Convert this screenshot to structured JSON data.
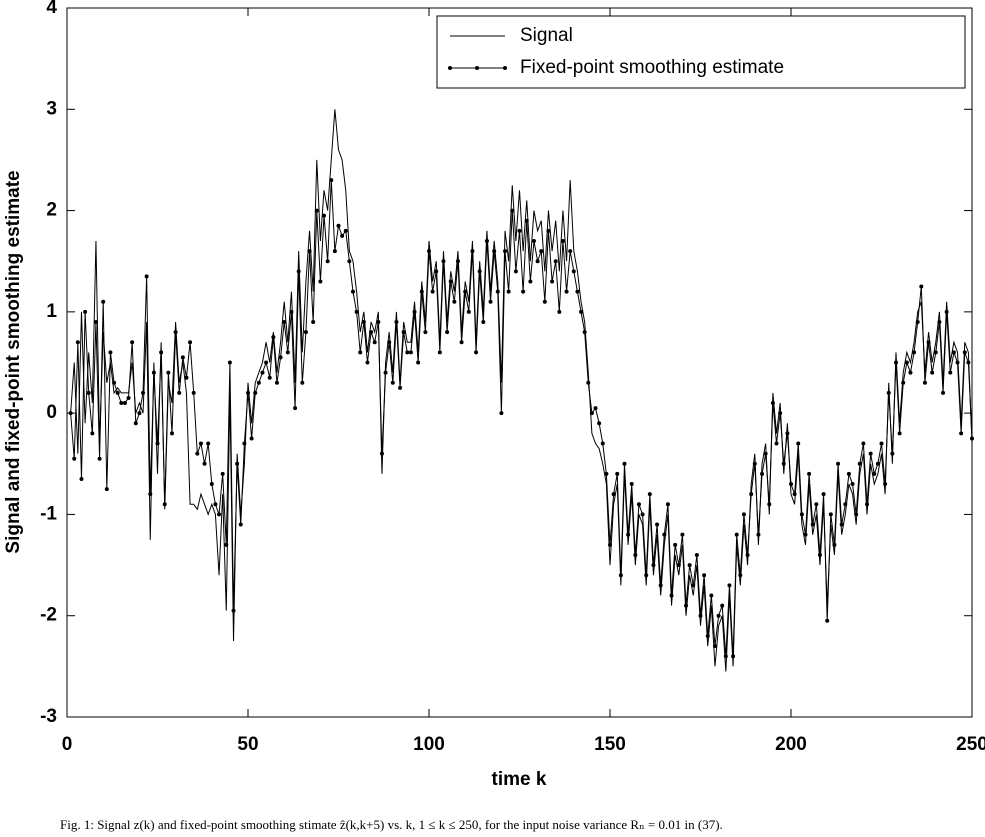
{
  "chart_data": {
    "type": "line",
    "xlabel": "time k",
    "ylabel": "Signal and fixed-point smoothing estimate",
    "caption": "Fig. 1: Signal z(k) and fixed-point smoothing stimate ẑ(k,k+5) vs. k, 1 ≤ k ≤ 250, for the input noise variance Rₙ = 0.01 in (37).",
    "legend": "upper right",
    "xlim": [
      0,
      250
    ],
    "xticks": [
      0,
      50,
      100,
      150,
      200,
      250
    ],
    "ylim": [
      -3,
      4
    ],
    "yticks": [
      -3,
      -2,
      -1,
      0,
      1,
      2,
      3,
      4
    ],
    "x": [
      1,
      2,
      3,
      4,
      5,
      6,
      7,
      8,
      9,
      10,
      11,
      12,
      13,
      14,
      15,
      16,
      17,
      18,
      19,
      20,
      21,
      22,
      23,
      24,
      25,
      26,
      27,
      28,
      29,
      30,
      31,
      32,
      33,
      34,
      35,
      36,
      37,
      38,
      39,
      40,
      41,
      42,
      43,
      44,
      45,
      46,
      47,
      48,
      49,
      50,
      51,
      52,
      53,
      54,
      55,
      56,
      57,
      58,
      59,
      60,
      61,
      62,
      63,
      64,
      65,
      66,
      67,
      68,
      69,
      70,
      71,
      72,
      73,
      74,
      75,
      76,
      77,
      78,
      79,
      80,
      81,
      82,
      83,
      84,
      85,
      86,
      87,
      88,
      89,
      90,
      91,
      92,
      93,
      94,
      95,
      96,
      97,
      98,
      99,
      100,
      101,
      102,
      103,
      104,
      105,
      106,
      107,
      108,
      109,
      110,
      111,
      112,
      113,
      114,
      115,
      116,
      117,
      118,
      119,
      120,
      121,
      122,
      123,
      124,
      125,
      126,
      127,
      128,
      129,
      130,
      131,
      132,
      133,
      134,
      135,
      136,
      137,
      138,
      139,
      140,
      141,
      142,
      143,
      144,
      145,
      146,
      147,
      148,
      149,
      150,
      151,
      152,
      153,
      154,
      155,
      156,
      157,
      158,
      159,
      160,
      161,
      162,
      163,
      164,
      165,
      166,
      167,
      168,
      169,
      170,
      171,
      172,
      173,
      174,
      175,
      176,
      177,
      178,
      179,
      180,
      181,
      182,
      183,
      184,
      185,
      186,
      187,
      188,
      189,
      190,
      191,
      192,
      193,
      194,
      195,
      196,
      197,
      198,
      199,
      200,
      201,
      202,
      203,
      204,
      205,
      206,
      207,
      208,
      209,
      210,
      211,
      212,
      213,
      214,
      215,
      216,
      217,
      218,
      219,
      220,
      221,
      222,
      223,
      224,
      225,
      226,
      227,
      228,
      229,
      230,
      231,
      232,
      233,
      234,
      235,
      236,
      237,
      238,
      239,
      240,
      241,
      242,
      243,
      244,
      245,
      246,
      247,
      248,
      249,
      250
    ],
    "series": [
      {
        "name": "Signal",
        "color": "#000000",
        "marker": "none",
        "values": [
          0.0,
          0.5,
          -0.4,
          1.0,
          -0.1,
          0.6,
          0.1,
          1.7,
          -0.3,
          0.8,
          0.3,
          0.5,
          0.2,
          0.25,
          0.2,
          0.2,
          0.2,
          0.5,
          0.0,
          0.1,
          0.0,
          0.9,
          -1.25,
          0.5,
          -0.6,
          0.7,
          -0.95,
          0.3,
          0.1,
          0.9,
          0.3,
          0.5,
          0.2,
          -0.9,
          -0.9,
          -0.95,
          -0.8,
          -0.9,
          -1.0,
          -0.9,
          -1.0,
          -1.6,
          -0.8,
          -1.95,
          0.2,
          -2.25,
          -0.4,
          -1.0,
          -0.5,
          0.3,
          -0.1,
          0.3,
          0.4,
          0.5,
          0.7,
          0.5,
          0.8,
          0.4,
          0.7,
          1.1,
          0.7,
          1.2,
          0.3,
          1.6,
          0.6,
          1.3,
          1.8,
          1.2,
          2.5,
          1.7,
          2.2,
          2.0,
          2.5,
          3.0,
          2.6,
          2.5,
          2.2,
          1.6,
          1.5,
          1.2,
          0.8,
          1.0,
          0.6,
          0.9,
          0.8,
          1.0,
          -0.6,
          0.5,
          0.8,
          0.4,
          1.0,
          0.3,
          0.9,
          0.7,
          0.7,
          1.1,
          0.6,
          1.3,
          0.9,
          1.7,
          1.3,
          1.5,
          0.7,
          1.6,
          0.9,
          1.4,
          1.2,
          1.6,
          0.8,
          1.3,
          1.1,
          1.7,
          0.7,
          1.5,
          1.0,
          1.8,
          1.2,
          1.7,
          1.3,
          0.3,
          1.8,
          1.5,
          2.25,
          1.7,
          2.2,
          1.6,
          2.1,
          1.5,
          2.0,
          1.8,
          1.9,
          1.4,
          2.0,
          1.6,
          1.9,
          1.4,
          2.0,
          1.5,
          2.3,
          1.6,
          1.4,
          1.1,
          0.9,
          0.4,
          -0.2,
          -0.3,
          -0.35,
          -0.5,
          -0.7,
          -1.5,
          -0.9,
          -0.7,
          -1.7,
          -0.6,
          -1.3,
          -0.8,
          -1.5,
          -1.0,
          -1.1,
          -1.7,
          -0.9,
          -1.6,
          -1.2,
          -1.8,
          -1.3,
          -1.0,
          -1.9,
          -1.4,
          -1.6,
          -1.3,
          -2.0,
          -1.6,
          -1.8,
          -1.5,
          -2.1,
          -1.7,
          -2.3,
          -1.9,
          -2.5,
          -2.1,
          -2.0,
          -2.55,
          -1.8,
          -2.5,
          -1.3,
          -1.7,
          -1.1,
          -1.5,
          -0.7,
          -0.4,
          -1.3,
          -0.5,
          -0.3,
          -1.0,
          0.2,
          -0.2,
          0.1,
          -0.6,
          -0.1,
          -0.8,
          -0.9,
          -0.4,
          -1.1,
          -1.3,
          -0.7,
          -1.2,
          -1.0,
          -1.5,
          -0.9,
          -1.9,
          -1.1,
          -1.4,
          -0.6,
          -1.2,
          -1.0,
          -0.7,
          -0.8,
          -1.1,
          -0.6,
          -0.4,
          -1.0,
          -0.5,
          -0.7,
          -0.6,
          -0.4,
          -0.8,
          0.3,
          -0.5,
          0.6,
          -0.1,
          0.4,
          0.6,
          0.5,
          0.7,
          1.0,
          1.1,
          0.4,
          0.8,
          0.5,
          0.7,
          1.0,
          0.3,
          1.1,
          0.5,
          0.7,
          0.6,
          -0.1,
          0.7,
          0.6,
          -0.3
        ]
      },
      {
        "name": "Fixed-point smoothing estimate",
        "color": "#000000",
        "marker": "o",
        "values": [
          0.0,
          -0.45,
          0.7,
          -0.65,
          1.0,
          0.2,
          -0.2,
          0.9,
          -0.45,
          1.1,
          -0.75,
          0.6,
          0.3,
          0.2,
          0.1,
          0.1,
          0.15,
          0.7,
          -0.1,
          0.0,
          0.2,
          1.35,
          -0.8,
          0.4,
          -0.3,
          0.6,
          -0.9,
          0.4,
          -0.2,
          0.8,
          0.2,
          0.55,
          0.35,
          0.7,
          0.2,
          -0.4,
          -0.3,
          -0.5,
          -0.3,
          -0.7,
          -0.9,
          -1.0,
          -0.6,
          -1.3,
          0.5,
          -1.95,
          -0.5,
          -1.1,
          -0.3,
          0.2,
          -0.25,
          0.2,
          0.3,
          0.4,
          0.5,
          0.35,
          0.75,
          0.3,
          0.55,
          0.9,
          0.6,
          1.0,
          0.05,
          1.4,
          0.3,
          0.8,
          1.6,
          0.9,
          2.0,
          1.3,
          1.95,
          1.5,
          2.3,
          1.6,
          1.85,
          1.75,
          1.8,
          1.5,
          1.2,
          1.0,
          0.6,
          0.9,
          0.5,
          0.8,
          0.7,
          0.9,
          -0.4,
          0.4,
          0.7,
          0.3,
          0.9,
          0.25,
          0.8,
          0.6,
          0.6,
          1.0,
          0.5,
          1.2,
          0.8,
          1.6,
          1.2,
          1.4,
          0.6,
          1.5,
          0.8,
          1.3,
          1.1,
          1.5,
          0.7,
          1.2,
          1.0,
          1.6,
          0.6,
          1.4,
          0.9,
          1.7,
          1.1,
          1.6,
          1.2,
          0.0,
          1.6,
          1.2,
          2.0,
          1.4,
          1.8,
          1.2,
          1.9,
          1.3,
          1.7,
          1.5,
          1.6,
          1.1,
          1.8,
          1.3,
          1.5,
          1.0,
          1.7,
          1.2,
          1.6,
          1.4,
          1.2,
          1.0,
          0.8,
          0.3,
          0.0,
          0.05,
          -0.1,
          -0.3,
          -0.6,
          -1.3,
          -0.8,
          -0.6,
          -1.6,
          -0.5,
          -1.2,
          -0.7,
          -1.4,
          -0.9,
          -1.0,
          -1.6,
          -0.8,
          -1.5,
          -1.1,
          -1.7,
          -1.2,
          -0.9,
          -1.8,
          -1.3,
          -1.5,
          -1.2,
          -1.9,
          -1.5,
          -1.7,
          -1.4,
          -2.0,
          -1.6,
          -2.2,
          -1.8,
          -2.3,
          -2.0,
          -1.9,
          -2.4,
          -1.7,
          -2.4,
          -1.2,
          -1.6,
          -1.0,
          -1.4,
          -0.8,
          -0.5,
          -1.2,
          -0.6,
          -0.4,
          -0.9,
          0.1,
          -0.3,
          0.0,
          -0.5,
          -0.2,
          -0.7,
          -0.8,
          -0.3,
          -1.0,
          -1.2,
          -0.6,
          -1.1,
          -0.9,
          -1.4,
          -0.8,
          -2.05,
          -1.0,
          -1.3,
          -0.5,
          -1.1,
          -0.9,
          -0.6,
          -0.7,
          -1.0,
          -0.5,
          -0.3,
          -0.9,
          -0.4,
          -0.6,
          -0.5,
          -0.3,
          -0.7,
          0.2,
          -0.4,
          0.5,
          -0.2,
          0.3,
          0.5,
          0.4,
          0.6,
          0.9,
          1.25,
          0.3,
          0.7,
          0.4,
          0.6,
          0.9,
          0.2,
          1.0,
          0.4,
          0.6,
          0.5,
          -0.2,
          0.6,
          0.5,
          -0.25
        ]
      }
    ]
  }
}
